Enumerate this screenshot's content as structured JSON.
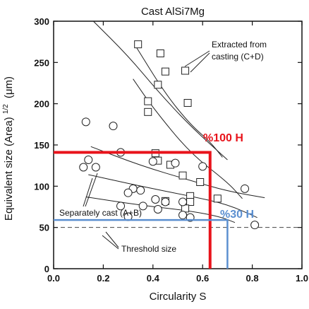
{
  "chart_data": {
    "type": "scatter",
    "title": "Cast AlSi7Mg",
    "xlabel": "Circularity S",
    "ylabel": "Equivalent size (Area)",
    "ylabel_sup": "1/2",
    "ylabel_unit": "(μm)",
    "xlim": [
      0,
      1.0
    ],
    "ylim": [
      0,
      300
    ],
    "x_ticks": [
      "0.0",
      "0.2",
      "0.4",
      "0.6",
      "0.8",
      "1.0"
    ],
    "y_ticks": [
      "0",
      "50",
      "100",
      "150",
      "200",
      "250",
      "300"
    ],
    "grid": false,
    "series": [
      {
        "name": "Extracted from casting (C+D)",
        "marker": "square",
        "points": [
          [
            0.34,
            272
          ],
          [
            0.43,
            261
          ],
          [
            0.45,
            239
          ],
          [
            0.42,
            223
          ],
          [
            0.53,
            240
          ],
          [
            0.38,
            203
          ],
          [
            0.38,
            190
          ],
          [
            0.54,
            201
          ],
          [
            0.41,
            140
          ],
          [
            0.42,
            131
          ],
          [
            0.47,
            126
          ],
          [
            0.52,
            113
          ],
          [
            0.55,
            88
          ],
          [
            0.59,
            105
          ],
          [
            0.66,
            85
          ],
          [
            0.55,
            81
          ],
          [
            0.53,
            73
          ],
          [
            0.45,
            82
          ]
        ]
      },
      {
        "name": "Separately cast (A+B)",
        "marker": "circle",
        "points": [
          [
            0.13,
            178
          ],
          [
            0.24,
            173
          ],
          [
            0.27,
            141
          ],
          [
            0.14,
            132
          ],
          [
            0.12,
            123
          ],
          [
            0.17,
            123
          ],
          [
            0.4,
            130
          ],
          [
            0.49,
            128
          ],
          [
            0.6,
            124
          ],
          [
            0.32,
            97
          ],
          [
            0.3,
            92
          ],
          [
            0.35,
            95
          ],
          [
            0.41,
            84
          ],
          [
            0.45,
            81
          ],
          [
            0.52,
            81
          ],
          [
            0.36,
            76
          ],
          [
            0.27,
            76
          ],
          [
            0.42,
            72
          ],
          [
            0.3,
            63
          ],
          [
            0.55,
            62
          ],
          [
            0.52,
            65
          ],
          [
            0.77,
            97
          ],
          [
            0.81,
            53
          ]
        ]
      }
    ],
    "curves": [
      {
        "points": [
          [
            0.16,
            300
          ],
          [
            0.3,
            258
          ],
          [
            0.42,
            215
          ],
          [
            0.55,
            173
          ],
          [
            0.7,
            132
          ]
        ]
      },
      {
        "points": [
          [
            0.33,
            270
          ],
          [
            0.45,
            212
          ],
          [
            0.55,
            175
          ],
          [
            0.63,
            154
          ],
          [
            0.68,
            135
          ]
        ]
      },
      {
        "points": [
          [
            0.32,
            230
          ],
          [
            0.4,
            195
          ],
          [
            0.55,
            140
          ],
          [
            0.7,
            105
          ],
          [
            0.76,
            85
          ]
        ]
      },
      {
        "points": [
          [
            0.15,
            148
          ],
          [
            0.35,
            125
          ],
          [
            0.55,
            107
          ],
          [
            0.7,
            94
          ],
          [
            0.85,
            86
          ]
        ]
      },
      {
        "points": [
          [
            0.14,
            114
          ],
          [
            0.35,
            100
          ],
          [
            0.55,
            88
          ],
          [
            0.7,
            78
          ],
          [
            0.82,
            62
          ]
        ]
      },
      {
        "points": [
          [
            0.13,
            87
          ],
          [
            0.35,
            77
          ],
          [
            0.55,
            70
          ],
          [
            0.67,
            63
          ],
          [
            0.73,
            56
          ]
        ]
      }
    ],
    "threshold": {
      "y": 50,
      "label": "Threshold size",
      "style": "dashed"
    },
    "annotations": [
      {
        "text": "Extracted from",
        "text2": "casting (C+D)",
        "position": "upper-right"
      },
      {
        "text": "Separately cast (A+B)",
        "position": "lower-left"
      }
    ],
    "markers": [
      {
        "label": "%100 H",
        "x": 0.63,
        "y": 141,
        "color": "#e8131b"
      },
      {
        "label": "%30 H",
        "x": 0.7,
        "y": 59,
        "color": "#5b8fd0"
      }
    ]
  }
}
